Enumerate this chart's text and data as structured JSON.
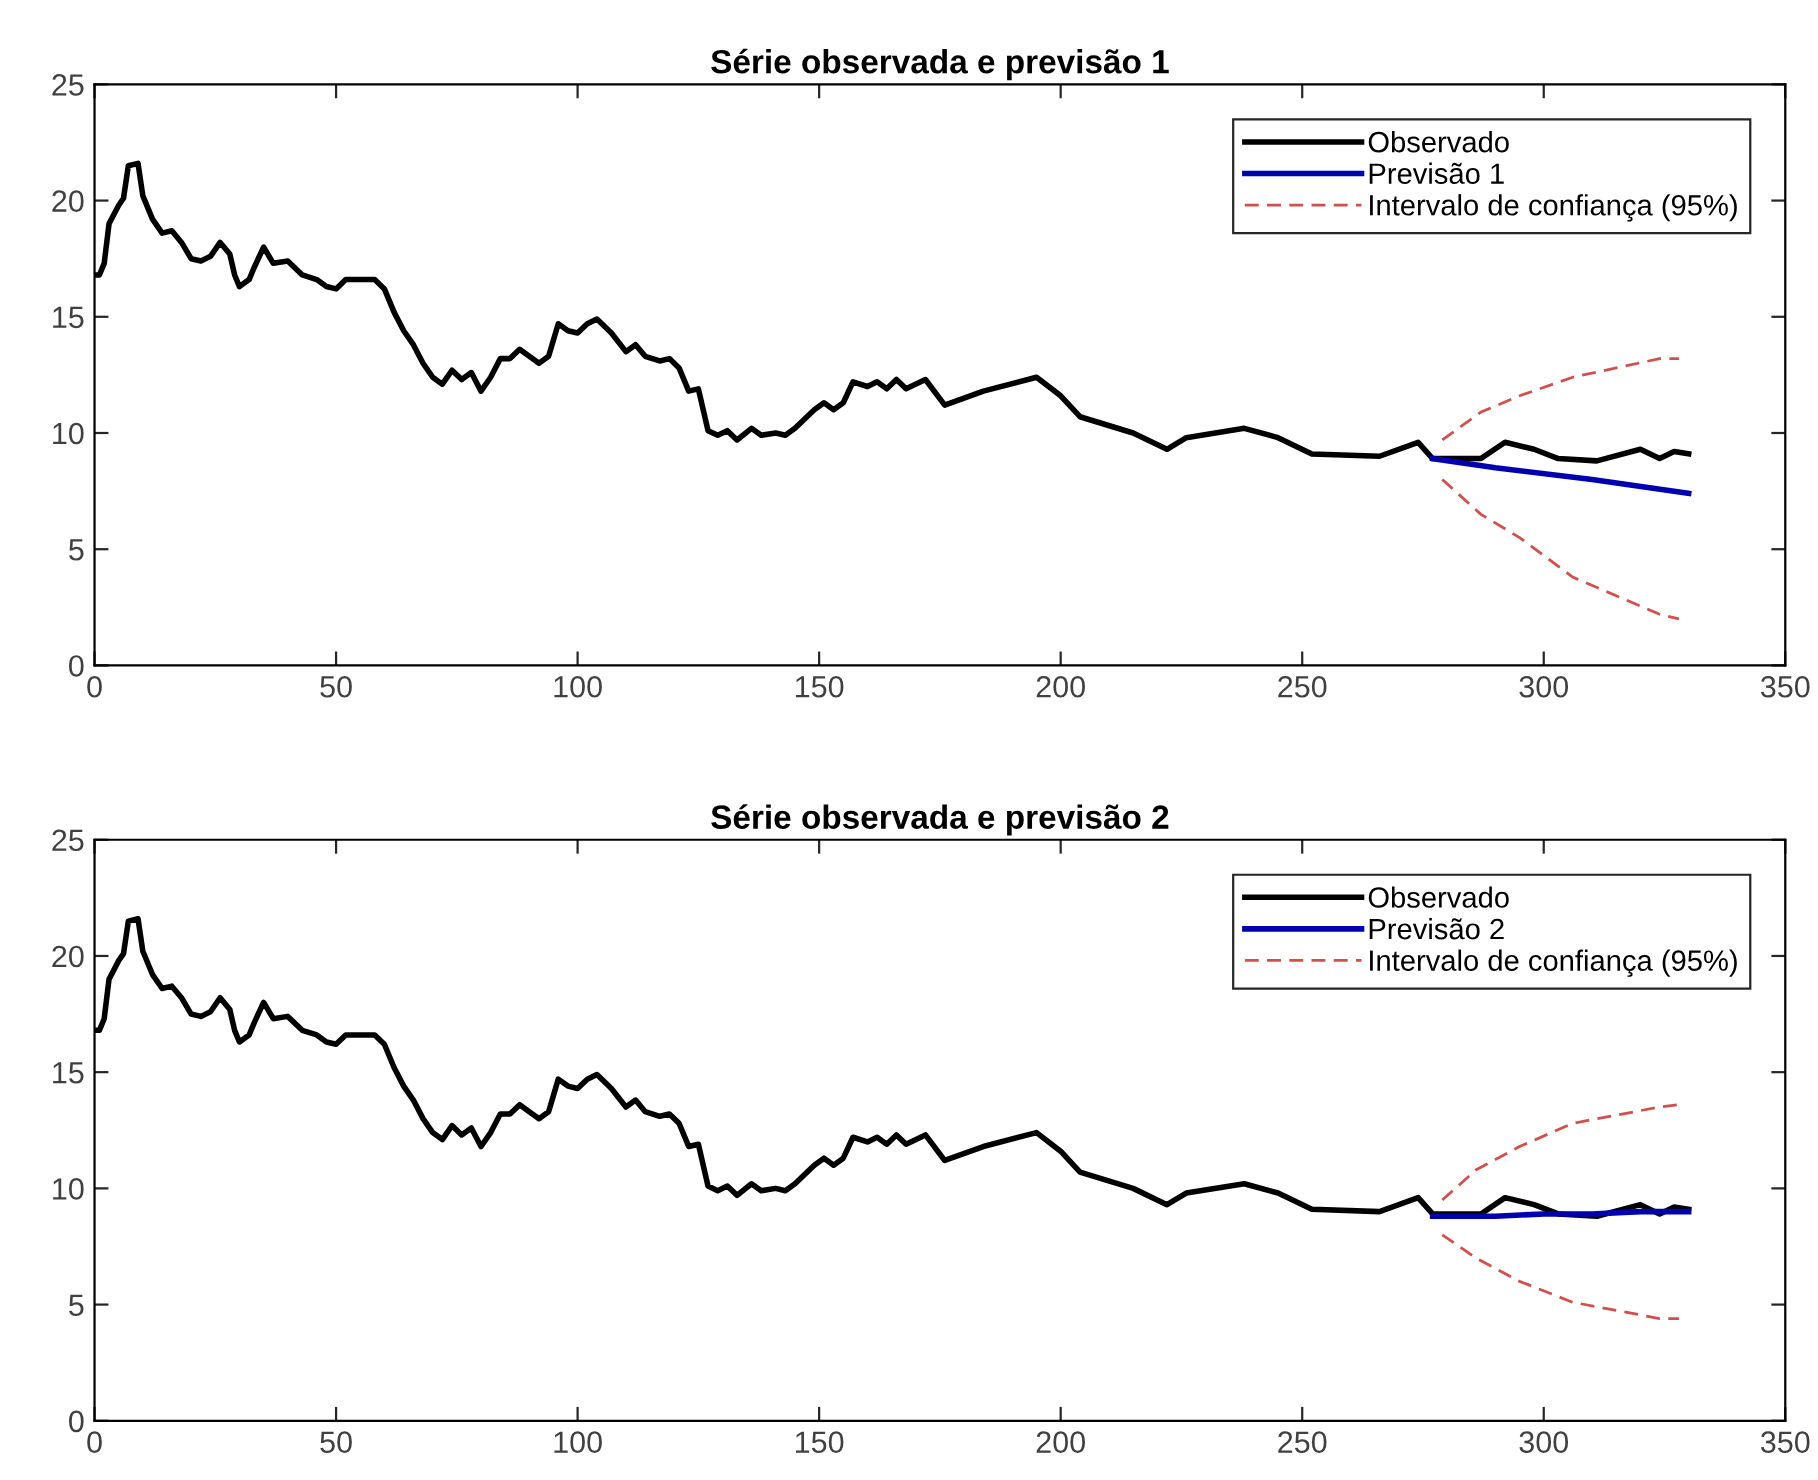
{
  "chart_data": [
    {
      "type": "line",
      "title": "Série observada e previsão 1",
      "xlim": [
        0,
        350
      ],
      "ylim": [
        0,
        25
      ],
      "xticks": [
        0,
        50,
        100,
        150,
        200,
        250,
        300,
        350
      ],
      "yticks": [
        0,
        5,
        10,
        15,
        20,
        25
      ],
      "grid": false,
      "legend": "top right",
      "series": [
        {
          "name": "Observado",
          "color": "#000000",
          "line_style": "solid",
          "x": [
            0,
            1,
            2,
            3,
            5,
            6,
            7,
            9,
            10,
            12,
            14,
            16,
            18,
            20,
            22,
            24,
            26,
            28,
            29,
            30,
            32,
            33,
            35,
            37,
            40,
            43,
            46,
            48,
            50,
            52,
            55,
            58,
            60,
            62,
            64,
            66,
            68,
            70,
            72,
            74,
            76,
            78,
            80,
            82,
            84,
            86,
            88,
            90,
            92,
            94,
            96,
            98,
            100,
            102,
            104,
            107,
            110,
            112,
            114,
            117,
            119,
            121,
            123,
            125,
            127,
            129,
            131,
            133,
            136,
            138,
            141,
            143,
            145,
            147,
            149,
            151,
            153,
            155,
            157,
            160,
            162,
            164,
            166,
            168,
            172,
            176,
            184,
            195,
            200,
            204,
            215,
            222,
            226,
            238,
            245,
            252,
            266,
            274,
            277,
            287,
            292,
            298,
            303,
            311,
            320,
            324,
            327,
            330
          ],
          "values": [
            16.8,
            16.8,
            17.3,
            19.0,
            19.8,
            20.1,
            21.5,
            21.6,
            20.2,
            19.2,
            18.6,
            18.7,
            18.2,
            17.5,
            17.4,
            17.6,
            18.2,
            17.7,
            16.8,
            16.3,
            16.6,
            17.1,
            18.0,
            17.3,
            17.4,
            16.8,
            16.6,
            16.3,
            16.2,
            16.6,
            16.6,
            16.6,
            16.2,
            15.2,
            14.4,
            13.8,
            13.0,
            12.4,
            12.1,
            12.7,
            12.3,
            12.6,
            11.8,
            12.4,
            13.2,
            13.2,
            13.6,
            13.3,
            13.0,
            13.3,
            14.7,
            14.4,
            14.3,
            14.7,
            14.9,
            14.3,
            13.5,
            13.8,
            13.3,
            13.1,
            13.2,
            12.8,
            11.8,
            11.9,
            10.1,
            9.9,
            10.1,
            9.7,
            10.2,
            9.9,
            10.0,
            9.9,
            10.2,
            10.6,
            11.0,
            11.3,
            11.0,
            11.3,
            12.2,
            12.0,
            12.2,
            11.9,
            12.3,
            11.9,
            12.3,
            11.2,
            11.8,
            12.4,
            11.6,
            10.7,
            10.0,
            9.3,
            9.8,
            10.2,
            9.8,
            9.1,
            9.0,
            9.6,
            8.9,
            8.9,
            9.6,
            9.3,
            8.9,
            8.8,
            9.3,
            8.9,
            9.2,
            9.1
          ]
        },
        {
          "name": "Previsão 1",
          "color": "#0000b0",
          "line_style": "solid",
          "x": [
            277,
            290,
            310,
            330
          ],
          "values": [
            8.9,
            8.5,
            8.0,
            7.4
          ]
        },
        {
          "name": "Intervalo de confiança (95%)",
          "color": "#d0504d",
          "line_style": "dashed",
          "x": [
            279,
            287,
            295,
            306,
            324,
            328
          ],
          "values": [
            9.7,
            10.9,
            11.6,
            12.4,
            13.2,
            13.2
          ]
        },
        {
          "color": "#d0504d",
          "line_style": "dashed",
          "x": [
            279,
            287,
            295,
            306,
            324,
            328
          ],
          "values": [
            8.0,
            6.5,
            5.5,
            3.8,
            2.2,
            2.0
          ]
        }
      ]
    },
    {
      "type": "line",
      "title": "Série observada e previsão 2",
      "xlim": [
        0,
        350
      ],
      "ylim": [
        0,
        25
      ],
      "xticks": [
        0,
        50,
        100,
        150,
        200,
        250,
        300,
        350
      ],
      "yticks": [
        0,
        5,
        10,
        15,
        20,
        25
      ],
      "grid": false,
      "legend": "top right",
      "series": [
        {
          "name": "Observado",
          "color": "#000000",
          "line_style": "solid",
          "x": [
            0,
            1,
            2,
            3,
            5,
            6,
            7,
            9,
            10,
            12,
            14,
            16,
            18,
            20,
            22,
            24,
            26,
            28,
            29,
            30,
            32,
            33,
            35,
            37,
            40,
            43,
            46,
            48,
            50,
            52,
            55,
            58,
            60,
            62,
            64,
            66,
            68,
            70,
            72,
            74,
            76,
            78,
            80,
            82,
            84,
            86,
            88,
            90,
            92,
            94,
            96,
            98,
            100,
            102,
            104,
            107,
            110,
            112,
            114,
            117,
            119,
            121,
            123,
            125,
            127,
            129,
            131,
            133,
            136,
            138,
            141,
            143,
            145,
            147,
            149,
            151,
            153,
            155,
            157,
            160,
            162,
            164,
            166,
            168,
            172,
            176,
            184,
            195,
            200,
            204,
            215,
            222,
            226,
            238,
            245,
            252,
            266,
            274,
            277,
            287,
            292,
            298,
            303,
            311,
            320,
            324,
            327,
            330
          ],
          "values": [
            16.8,
            16.8,
            17.3,
            19.0,
            19.8,
            20.1,
            21.5,
            21.6,
            20.2,
            19.2,
            18.6,
            18.7,
            18.2,
            17.5,
            17.4,
            17.6,
            18.2,
            17.7,
            16.8,
            16.3,
            16.6,
            17.1,
            18.0,
            17.3,
            17.4,
            16.8,
            16.6,
            16.3,
            16.2,
            16.6,
            16.6,
            16.6,
            16.2,
            15.2,
            14.4,
            13.8,
            13.0,
            12.4,
            12.1,
            12.7,
            12.3,
            12.6,
            11.8,
            12.4,
            13.2,
            13.2,
            13.6,
            13.3,
            13.0,
            13.3,
            14.7,
            14.4,
            14.3,
            14.7,
            14.9,
            14.3,
            13.5,
            13.8,
            13.3,
            13.1,
            13.2,
            12.8,
            11.8,
            11.9,
            10.1,
            9.9,
            10.1,
            9.7,
            10.2,
            9.9,
            10.0,
            9.9,
            10.2,
            10.6,
            11.0,
            11.3,
            11.0,
            11.3,
            12.2,
            12.0,
            12.2,
            11.9,
            12.3,
            11.9,
            12.3,
            11.2,
            11.8,
            12.4,
            11.6,
            10.7,
            10.0,
            9.3,
            9.8,
            10.2,
            9.8,
            9.1,
            9.0,
            9.6,
            8.9,
            8.9,
            9.6,
            9.3,
            8.9,
            8.8,
            9.3,
            8.9,
            9.2,
            9.1
          ]
        },
        {
          "name": "Previsão 2",
          "color": "#0000b0",
          "line_style": "solid",
          "x": [
            277,
            290,
            300,
            310,
            320,
            330
          ],
          "values": [
            8.8,
            8.8,
            8.9,
            8.9,
            9.0,
            9.0
          ]
        },
        {
          "name": "Intervalo de confiança (95%)",
          "color": "#d0504d",
          "line_style": "dashed",
          "x": [
            279,
            286,
            295,
            306,
            324,
            328
          ],
          "values": [
            9.5,
            10.8,
            11.8,
            12.8,
            13.5,
            13.6
          ]
        },
        {
          "color": "#d0504d",
          "line_style": "dashed",
          "x": [
            279,
            286,
            295,
            306,
            324,
            328
          ],
          "values": [
            8.0,
            7.0,
            6.0,
            5.1,
            4.4,
            4.4
          ]
        }
      ]
    }
  ]
}
